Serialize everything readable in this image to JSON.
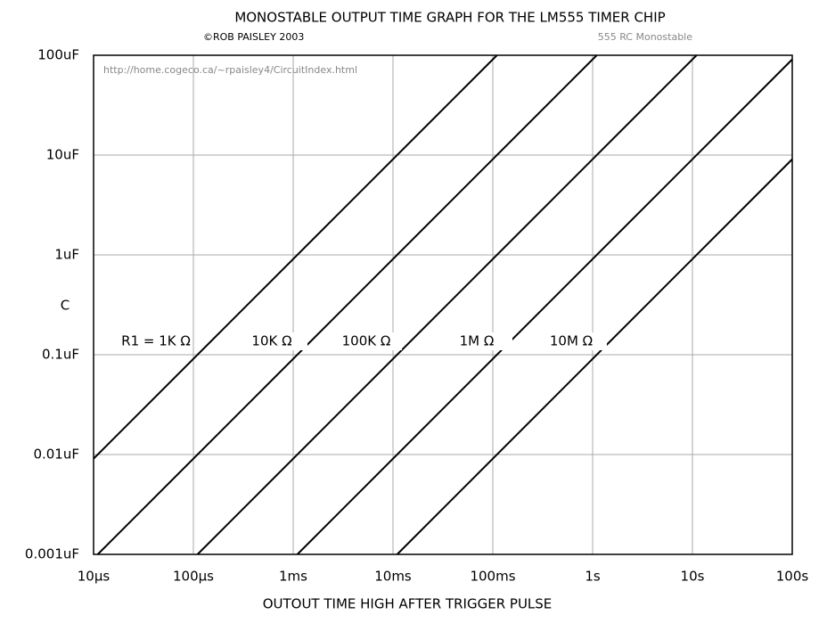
{
  "chart_data": {
    "type": "line",
    "title": "MONOSTABLE OUTPUT TIME GRAPH FOR THE LM555 TIMER CHIP",
    "subtitle": "©ROB PAISLEY 2003",
    "note": "555 RC Monostable",
    "url": "http://home.cogeco.ca/~rpaisley4/CircuitIndex.html",
    "x_label": "OUTOUT TIME HIGH AFTER TRIGGER PULSE",
    "y_label": "C",
    "log_x": true,
    "log_y": true,
    "grid": true,
    "xlim": [
      1e-05,
      100
    ],
    "ylim": [
      1e-09,
      0.0001
    ],
    "xticks": [
      {
        "value": 1e-05,
        "label": "10µs"
      },
      {
        "value": 0.0001,
        "label": "100µs"
      },
      {
        "value": 0.001,
        "label": "1ms"
      },
      {
        "value": 0.01,
        "label": "10ms"
      },
      {
        "value": 0.1,
        "label": "100ms"
      },
      {
        "value": 1,
        "label": "1s"
      },
      {
        "value": 10,
        "label": "10s"
      },
      {
        "value": 100,
        "label": "100s"
      }
    ],
    "yticks": [
      {
        "value": 1e-09,
        "label": "0.001uF"
      },
      {
        "value": 1e-08,
        "label": "0.01uF"
      },
      {
        "value": 1e-07,
        "label": "0.1uF"
      },
      {
        "value": 1e-06,
        "label": "1uF"
      },
      {
        "value": 1e-05,
        "label": "10uF"
      },
      {
        "value": 0.0001,
        "label": "100uF"
      }
    ],
    "series": [
      {
        "name": "R1 = 1K Ω",
        "color": "#000000",
        "x": [
          1e-05,
          0.11
        ],
        "values": [
          9.09e-09,
          0.0001
        ]
      },
      {
        "name": "10K Ω",
        "color": "#000000",
        "x": [
          1.1e-05,
          1.1
        ],
        "values": [
          1e-09,
          0.0001
        ]
      },
      {
        "name": "100K Ω",
        "color": "#000000",
        "x": [
          0.00011,
          11
        ],
        "values": [
          1e-09,
          0.0001
        ]
      },
      {
        "name": "1M Ω",
        "color": "#000000",
        "x": [
          0.0011,
          100
        ],
        "values": [
          1e-09,
          9.09e-05
        ]
      },
      {
        "name": "10M Ω",
        "color": "#000000",
        "x": [
          0.011,
          100
        ],
        "values": [
          1e-09,
          9.09e-06
        ]
      }
    ]
  }
}
